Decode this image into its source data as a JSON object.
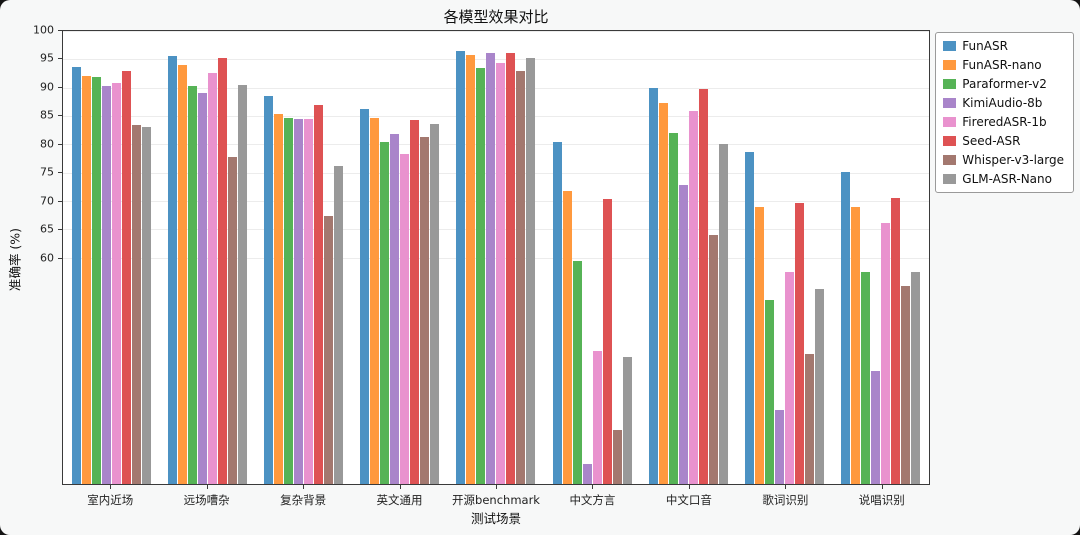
{
  "chart_data": {
    "type": "bar",
    "title": "各模型效果对比",
    "xlabel": "测试场景",
    "ylabel": "准确率 (%)",
    "ylim": [
      20,
      100
    ],
    "yticks": [
      100,
      95,
      90,
      85,
      80,
      75,
      70,
      65,
      60
    ],
    "grid": true,
    "legend_position": "outside-right",
    "categories": [
      "室内近场",
      "远场嘈杂",
      "复杂背景",
      "英文通用",
      "开源benchmark",
      "中文方言",
      "中文口音",
      "歌词识别",
      "说唱识别"
    ],
    "series": [
      {
        "name": "FunASR",
        "color": "#4c92c3",
        "values": [
          93.7,
          95.5,
          88.5,
          86.2,
          96.4,
          80.4,
          90.0,
          78.7,
          75.1
        ]
      },
      {
        "name": "FunASR-nano",
        "color": "#ff993e",
        "values": [
          92.0,
          94.0,
          85.3,
          84.6,
          95.8,
          71.7,
          87.2,
          69.0,
          69.0
        ]
      },
      {
        "name": "Paraformer-v2",
        "color": "#56b356",
        "values": [
          91.8,
          90.3,
          84.7,
          80.4,
          93.5,
          59.3,
          82.0,
          52.5,
          57.5
        ]
      },
      {
        "name": "KimiAudio-8b",
        "color": "#a985ca",
        "values": [
          90.3,
          89.0,
          84.5,
          81.8,
          96.1,
          23.5,
          72.8,
          33.0,
          40.0
        ]
      },
      {
        "name": "FireredASR-1b",
        "color": "#e992ce",
        "values": [
          90.8,
          92.5,
          84.4,
          78.3,
          94.3,
          43.5,
          85.8,
          57.5,
          66.1
        ]
      },
      {
        "name": "Seed-ASR",
        "color": "#de5253",
        "values": [
          92.9,
          95.3,
          87.0,
          84.3,
          96.1,
          70.4,
          89.8,
          69.7,
          70.5
        ]
      },
      {
        "name": "Whisper-v3-large",
        "color": "#a3786f",
        "values": [
          83.4,
          77.7,
          67.3,
          81.3,
          92.9,
          29.5,
          63.9,
          43.0,
          55.0
        ]
      },
      {
        "name": "GLM-ASR-Nano",
        "color": "#999999",
        "values": [
          83.0,
          90.5,
          76.1,
          83.5,
          95.2,
          42.5,
          80.1,
          54.5,
          57.5
        ]
      }
    ]
  }
}
